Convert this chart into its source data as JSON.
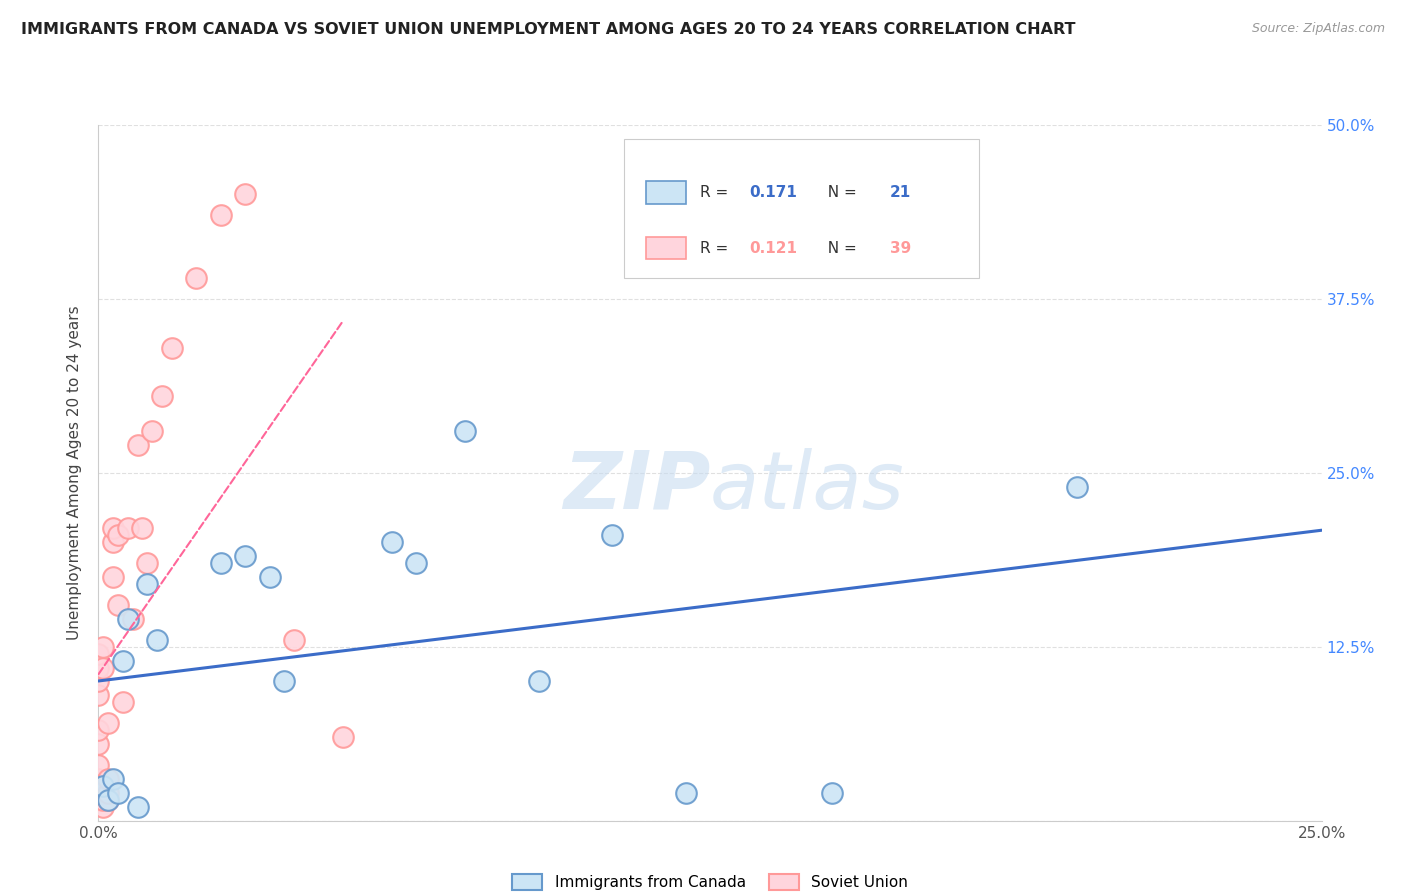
{
  "title": "IMMIGRANTS FROM CANADA VS SOVIET UNION UNEMPLOYMENT AMONG AGES 20 TO 24 YEARS CORRELATION CHART",
  "source": "Source: ZipAtlas.com",
  "ylabel": "Unemployment Among Ages 20 to 24 years",
  "xlim": [
    0,
    0.25
  ],
  "ylim": [
    0,
    0.5
  ],
  "canada_x": [
    0.001,
    0.002,
    0.003,
    0.004,
    0.005,
    0.006,
    0.008,
    0.01,
    0.012,
    0.025,
    0.03,
    0.035,
    0.038,
    0.06,
    0.065,
    0.075,
    0.09,
    0.105,
    0.12,
    0.15,
    0.2
  ],
  "canada_y": [
    0.025,
    0.015,
    0.03,
    0.02,
    0.115,
    0.145,
    0.01,
    0.17,
    0.13,
    0.185,
    0.19,
    0.175,
    0.1,
    0.2,
    0.185,
    0.28,
    0.1,
    0.205,
    0.02,
    0.02,
    0.24
  ],
  "soviet_x": [
    0.0,
    0.0,
    0.0,
    0.0,
    0.0,
    0.0,
    0.0,
    0.0,
    0.0,
    0.0,
    0.001,
    0.001,
    0.001,
    0.001,
    0.001,
    0.001,
    0.002,
    0.002,
    0.002,
    0.002,
    0.003,
    0.003,
    0.003,
    0.004,
    0.004,
    0.005,
    0.006,
    0.007,
    0.008,
    0.009,
    0.01,
    0.011,
    0.013,
    0.015,
    0.02,
    0.025,
    0.03,
    0.04,
    0.05
  ],
  "soviet_y": [
    0.015,
    0.02,
    0.03,
    0.04,
    0.055,
    0.065,
    0.09,
    0.1,
    0.11,
    0.12,
    0.01,
    0.015,
    0.02,
    0.025,
    0.11,
    0.125,
    0.015,
    0.02,
    0.03,
    0.07,
    0.175,
    0.2,
    0.21,
    0.155,
    0.205,
    0.085,
    0.21,
    0.145,
    0.27,
    0.21,
    0.185,
    0.28,
    0.305,
    0.34,
    0.39,
    0.435,
    0.45,
    0.13,
    0.06
  ],
  "canada_R": 0.171,
  "canada_N": 21,
  "soviet_R": 0.121,
  "soviet_N": 39,
  "canada_color": "#6699CC",
  "canada_face": "#CCE5F5",
  "soviet_color": "#FF9999",
  "soviet_face": "#FFD5DD",
  "trend_canada_color": "#3B6CC8",
  "trend_soviet_color": "#FF6699",
  "watermark_color": "#C8DCF0",
  "background_color": "#ffffff",
  "grid_color": "#e0e0e0"
}
